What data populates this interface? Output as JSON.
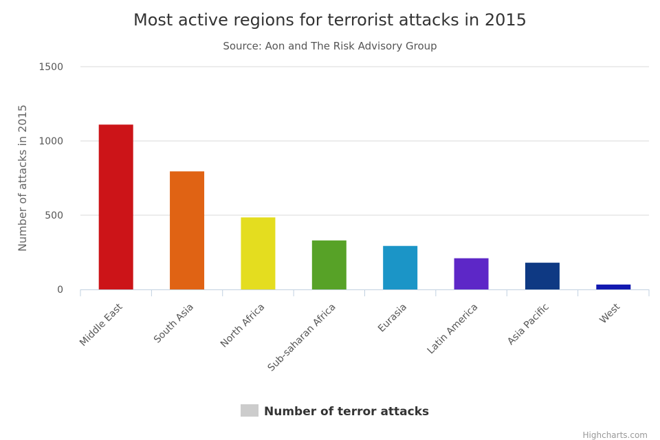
{
  "chart_data": {
    "type": "bar",
    "title": "Most active regions for terrorist attacks in 2015",
    "subtitle": "Source: Aon and The Risk Advisory Group",
    "ylabel": "Number of attacks in 2015",
    "xlabel": "",
    "ylim": [
      0,
      1500
    ],
    "yticks": [
      0,
      500,
      1000,
      1500
    ],
    "categories": [
      "Middle East",
      "South Asia",
      "North Africa",
      "Sub-saharan Africa",
      "Eurasia",
      "Latin America",
      "Asia Pacific",
      "West"
    ],
    "series": [
      {
        "name": "Number of terror attacks",
        "values": [
          1110,
          795,
          485,
          330,
          293,
          210,
          180,
          33
        ],
        "colors": [
          "#cc1418",
          "#e06314",
          "#e4dd1f",
          "#57a227",
          "#1b95c7",
          "#5d27c7",
          "#0e3983",
          "#1219b0"
        ]
      }
    ],
    "legend": {
      "position": "bottom-center",
      "label": "Number of terror attacks",
      "swatch_color": "#cccccc"
    },
    "credit": "Highcharts.com"
  }
}
